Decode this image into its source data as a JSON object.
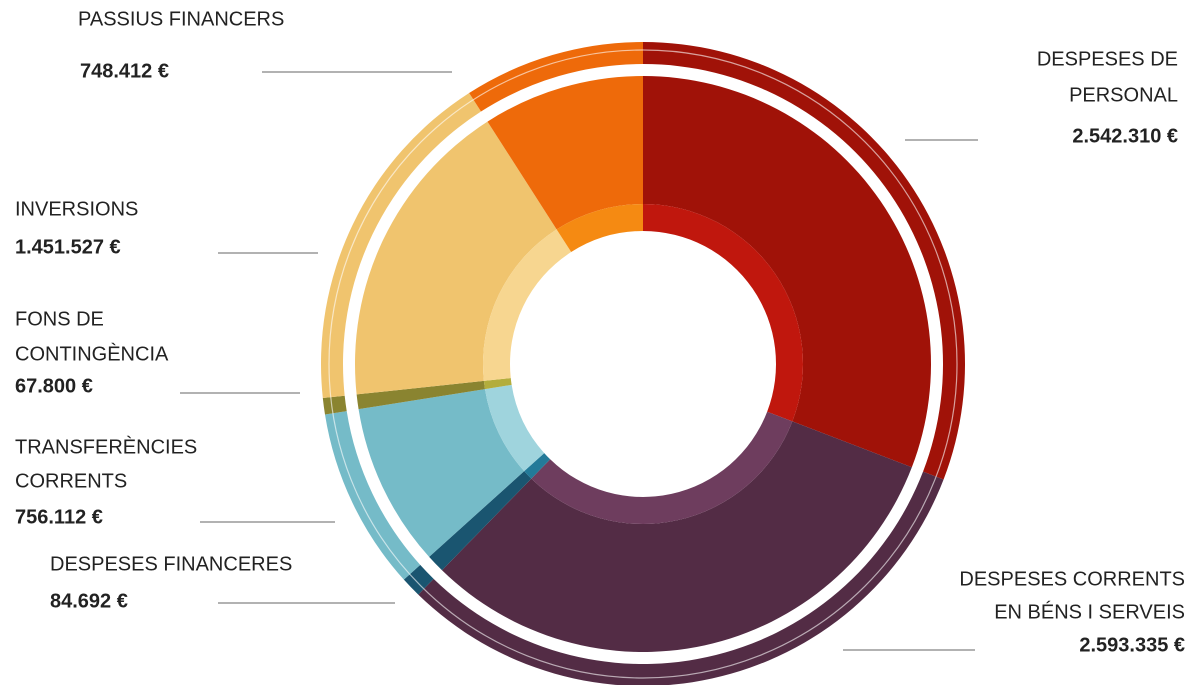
{
  "chart_data": {
    "type": "pie",
    "categories": [
      [
        "DESPESES DE",
        "PERSONAL"
      ],
      [
        "DESPESES CORRENTS",
        "EN BÉNS I SERVEIS"
      ],
      [
        "DESPESES FINANCERES"
      ],
      [
        "TRANSFERÈNCIES",
        "CORRENTS"
      ],
      [
        "FONS DE",
        "CONTINGÈNCIA"
      ],
      [
        "INVERSIONS"
      ],
      [
        "PASSIUS FINANCERS"
      ]
    ],
    "values": [
      2542310,
      2593335,
      84692,
      756112,
      67800,
      1451527,
      748412
    ],
    "value_labels": [
      "2.542.310 €",
      "2.593.335 €",
      "84.692 €",
      "756.112 €",
      "67.800 €",
      "1.451.527 €",
      "748.412 €"
    ],
    "colors": [
      "#a01208",
      "#532c45",
      "#1a5570",
      "#75bbc8",
      "#8a8430",
      "#f0c46e",
      "#ee6a0a"
    ],
    "inner_colors": [
      "#c0170d",
      "#6e3d5e",
      "#237a99",
      "#9fd4dd",
      "#b3ad3c",
      "#f7d690",
      "#f58a12"
    ]
  }
}
